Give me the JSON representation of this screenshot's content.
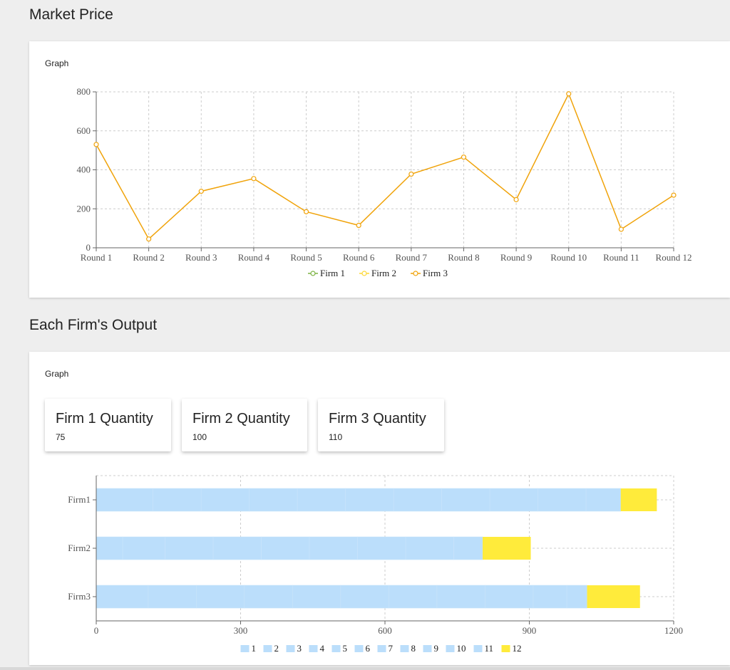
{
  "sections": {
    "price_title": "Market Price",
    "output_title": "Each Firm's Output",
    "graph_label": "Graph"
  },
  "quantities": [
    {
      "title": "Firm 1 Quantity",
      "value": "75"
    },
    {
      "title": "Firm 2 Quantity",
      "value": "100"
    },
    {
      "title": "Firm 3 Quantity",
      "value": "110"
    }
  ],
  "chart_data": [
    {
      "type": "line",
      "categories": [
        "Round 1",
        "Round 2",
        "Round 3",
        "Round 4",
        "Round 5",
        "Round 6",
        "Round 7",
        "Round 8",
        "Round 9",
        "Round 10",
        "Round 11",
        "Round 12"
      ],
      "ylim": [
        0,
        800
      ],
      "yticks": [
        0,
        200,
        400,
        600,
        800
      ],
      "grid": true,
      "legend": "bottom",
      "series": [
        {
          "name": "Firm 1",
          "color": "#7cb342",
          "values": null
        },
        {
          "name": "Firm 2",
          "color": "#fdd835",
          "values": null
        },
        {
          "name": "Firm 3",
          "color": "#f0a30a",
          "values": [
            530,
            45,
            290,
            355,
            185,
            115,
            378,
            465,
            247,
            790,
            95,
            270
          ]
        }
      ]
    },
    {
      "type": "bar",
      "orientation": "horizontal",
      "stacked": true,
      "categories": [
        "Firm1",
        "Firm2",
        "Firm3"
      ],
      "xlim": [
        0,
        1200
      ],
      "xticks": [
        0,
        300,
        600,
        900,
        1200
      ],
      "grid": true,
      "legend": "bottom",
      "series": [
        {
          "name": "1",
          "color": "#bbdefb",
          "values": [
            118,
            55,
            108
          ]
        },
        {
          "name": "2",
          "color": "#bbdefb",
          "values": [
            100,
            88,
            100
          ]
        },
        {
          "name": "3",
          "color": "#bbdefb",
          "values": [
            100,
            100,
            100
          ]
        },
        {
          "name": "4",
          "color": "#bbdefb",
          "values": [
            100,
            100,
            100
          ]
        },
        {
          "name": "5",
          "color": "#bbdefb",
          "values": [
            100,
            100,
            100
          ]
        },
        {
          "name": "6",
          "color": "#bbdefb",
          "values": [
            100,
            100,
            100
          ]
        },
        {
          "name": "7",
          "color": "#bbdefb",
          "values": [
            100,
            100,
            100
          ]
        },
        {
          "name": "8",
          "color": "#bbdefb",
          "values": [
            100,
            100,
            100
          ]
        },
        {
          "name": "9",
          "color": "#bbdefb",
          "values": [
            100,
            60,
            100
          ]
        },
        {
          "name": "10",
          "color": "#bbdefb",
          "values": [
            100,
            0,
            70
          ]
        },
        {
          "name": "11",
          "color": "#bbdefb",
          "values": [
            72,
            0,
            42
          ]
        },
        {
          "name": "12",
          "color": "#ffeb3b",
          "values": [
            75,
            100,
            110
          ]
        }
      ]
    }
  ]
}
